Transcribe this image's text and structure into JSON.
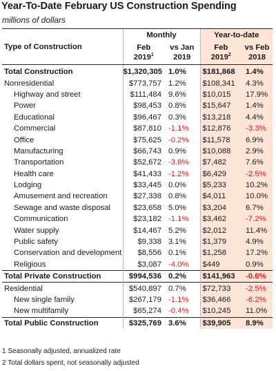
{
  "title": "Year-To-Date February US Construction Spending",
  "subtitle": "millions of dollars",
  "header": {
    "type_label": "Type of Construction",
    "monthly": "Monthly",
    "ytd": "Year-to-date",
    "col1_line1": "Feb",
    "col1_line2": "2019",
    "col1_sup": "1",
    "col2_line1": "vs Jan",
    "col2_line2": "2019",
    "col3_line1": "Feb",
    "col3_line2": "2019",
    "col3_sup": "2",
    "col4_line1": "vs Feb",
    "col4_line2": "2018"
  },
  "rows": [
    {
      "name": "Total Construction",
      "monthly": "$1,320,305",
      "vs_jan": "1.0%",
      "ytd": "$181,868",
      "vs_feb": "1.4%"
    },
    {
      "name": "Nonresidential",
      "monthly": "$773,757",
      "vs_jan": "1.2%",
      "ytd": "$108,341",
      "vs_feb": "4.3%"
    },
    {
      "name": "Highway and street",
      "monthly": "$111,484",
      "vs_jan": "9.6%",
      "ytd": "$10,015",
      "vs_feb": "17.9%"
    },
    {
      "name": "Power",
      "monthly": "$98,453",
      "vs_jan": "0.8%",
      "ytd": "$15,647",
      "vs_feb": "1.4%"
    },
    {
      "name": "Educational",
      "monthly": "$96,467",
      "vs_jan": "0.3%",
      "ytd": "$13,218",
      "vs_feb": "4.4%"
    },
    {
      "name": "Commercial",
      "monthly": "$87,810",
      "vs_jan": "-1.1%",
      "ytd": "$12,876",
      "vs_feb": "-3.3%"
    },
    {
      "name": "Office",
      "monthly": "$75,625",
      "vs_jan": "-0.2%",
      "ytd": "$11,578",
      "vs_feb": "6.9%"
    },
    {
      "name": "Manufacturing",
      "monthly": "$66,743",
      "vs_jan": "0.9%",
      "ytd": "$10,088",
      "vs_feb": "2.9%"
    },
    {
      "name": "Transportation",
      "monthly": "$52,672",
      "vs_jan": "-3.8%",
      "ytd": "$7,482",
      "vs_feb": "7.6%"
    },
    {
      "name": "Health care",
      "monthly": "$41,433",
      "vs_jan": "-1.2%",
      "ytd": "$6,429",
      "vs_feb": "-2.5%"
    },
    {
      "name": "Lodging",
      "monthly": "$33,445",
      "vs_jan": "0.0%",
      "ytd": "$5,233",
      "vs_feb": "10.2%"
    },
    {
      "name": "Amusement and recreation",
      "monthly": "$27,338",
      "vs_jan": "0.8%",
      "ytd": "$4,011",
      "vs_feb": "10.0%"
    },
    {
      "name": "Sewage and waste disposal",
      "monthly": "$23,658",
      "vs_jan": "5.0%",
      "ytd": "$3,204",
      "vs_feb": "6.7%"
    },
    {
      "name": "Communication",
      "monthly": "$23,182",
      "vs_jan": "-1.1%",
      "ytd": "$3,462",
      "vs_feb": "-7.2%"
    },
    {
      "name": "Water supply",
      "monthly": "$14,467",
      "vs_jan": "5.2%",
      "ytd": "$2,012",
      "vs_feb": "11.4%"
    },
    {
      "name": "Public safety",
      "monthly": "$9,338",
      "vs_jan": "3.1%",
      "ytd": "$1,379",
      "vs_feb": "4.9%"
    },
    {
      "name": "Conservation and development",
      "monthly": "$8,556",
      "vs_jan": "0.1%",
      "ytd": "$1,258",
      "vs_feb": "17.2%"
    },
    {
      "name": "Religious",
      "monthly": "$3,087",
      "vs_jan": "-4.0%",
      "ytd": "$449",
      "vs_feb": "0.9%"
    },
    {
      "name": "Total Private Construction",
      "monthly": "$994,536",
      "vs_jan": "0.2%",
      "ytd": "$141,963",
      "vs_feb": "-0.6%"
    },
    {
      "name": "Residential",
      "monthly": "$540,897",
      "vs_jan": "0.7%",
      "ytd": "$72,733",
      "vs_feb": "-2.5%"
    },
    {
      "name": "New single family",
      "monthly": "$267,179",
      "vs_jan": "-1.1%",
      "ytd": "$36,466",
      "vs_feb": "-6.2%"
    },
    {
      "name": "New multifamily",
      "monthly": "$65,274",
      "vs_jan": "-0.4%",
      "ytd": "$10,245",
      "vs_feb": "11.0%"
    },
    {
      "name": "Total Public Construction",
      "monthly": "$325,769",
      "vs_jan": "3.6%",
      "ytd": "$39,905",
      "vs_feb": "8.9%"
    }
  ],
  "footnotes": [
    "1 Seasonally adjusted, annualized rate",
    "2 Total dollars spent, not seasonally adjusted"
  ]
}
